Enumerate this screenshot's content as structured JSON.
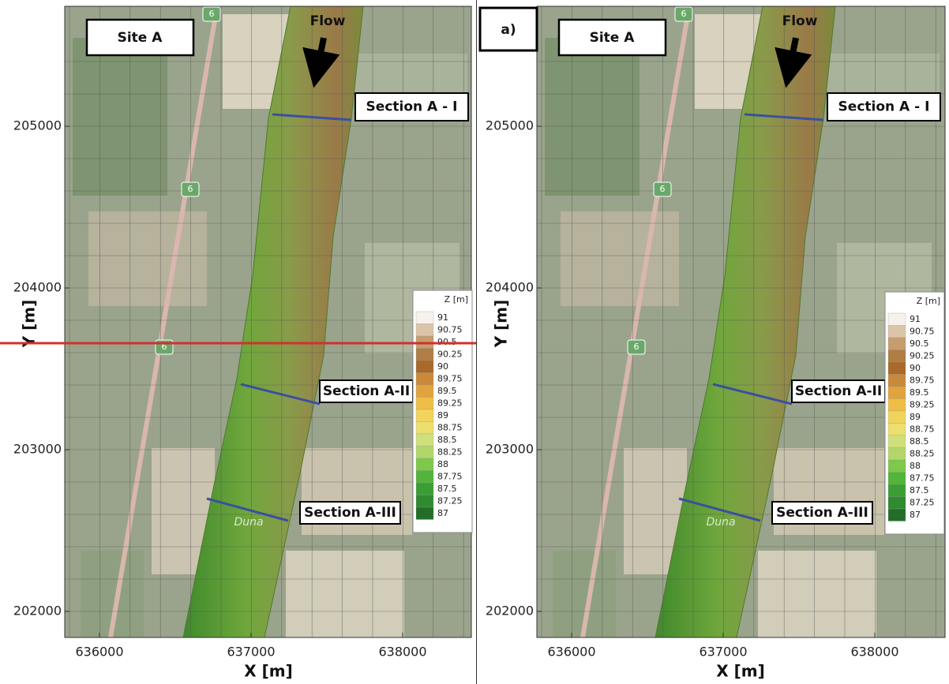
{
  "panels": [
    {
      "site_label": "Site A",
      "flow_label": "Flow",
      "sections": [
        "Section A - I",
        "Section A-II",
        "Section A-III"
      ],
      "river_label": "Duna",
      "road_labels": [
        "6",
        "6",
        "6"
      ],
      "x_axis": {
        "label": "X [m]",
        "ticks": [
          636000,
          637000,
          638000
        ]
      },
      "y_axis": {
        "label": "Y [m]",
        "ticks": [
          205000,
          204000,
          203000,
          202000
        ]
      },
      "legend": {
        "title": "Z [m]",
        "levels": [
          91,
          90.75,
          90.5,
          90.25,
          90,
          89.75,
          89.5,
          89.25,
          89,
          88.75,
          88.5,
          88.25,
          88,
          87.75,
          87.5,
          87.25,
          87
        ]
      }
    },
    {
      "panel_label": "a)",
      "site_label": "Site A",
      "flow_label": "Flow",
      "sections": [
        "Section A - I",
        "Section A-II",
        "Section A-III"
      ],
      "river_label": "Duna",
      "road_labels": [
        "6",
        "6",
        "6"
      ],
      "x_axis": {
        "label": "X [m]",
        "ticks": [
          636000,
          637000,
          638000
        ]
      },
      "y_axis": {
        "label": "Y [m]",
        "ticks": [
          205000,
          204000,
          203000,
          202000
        ]
      },
      "legend": {
        "title": "Z [m]",
        "levels": [
          91,
          90.75,
          90.5,
          90.25,
          90,
          89.75,
          89.5,
          89.25,
          89,
          88.75,
          88.5,
          88.25,
          88,
          87.75,
          87.5,
          87.25,
          87
        ]
      }
    }
  ]
}
